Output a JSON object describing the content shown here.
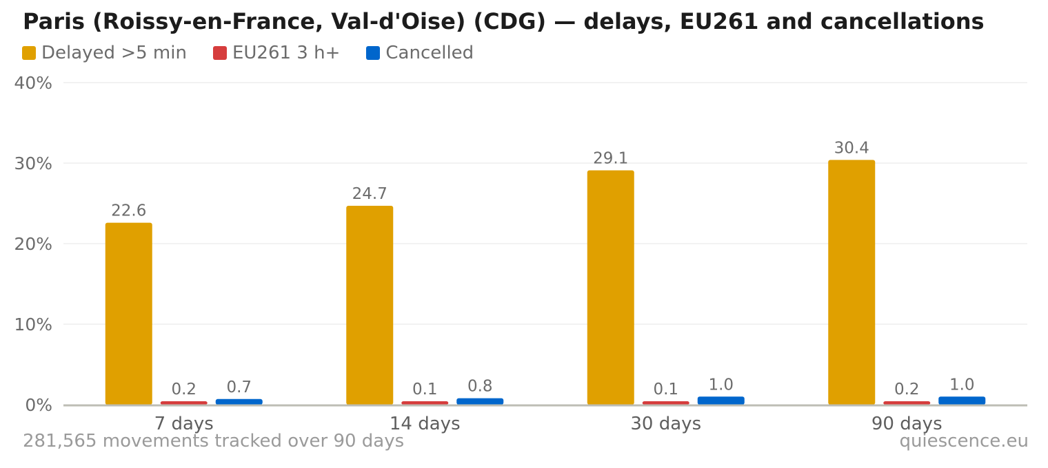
{
  "title": "Paris (Roissy-en-France, Val-d'Oise) (CDG) — delays, EU261 and cancellations",
  "footer": {
    "left": "281,565 movements tracked over 90 days",
    "right": "quiescence.eu"
  },
  "chart_data": {
    "type": "bar",
    "categories": [
      "7 days",
      "14 days",
      "30 days",
      "90 days"
    ],
    "series": [
      {
        "name": "Delayed >5 min",
        "color": "#e0a000",
        "values": [
          22.6,
          24.7,
          29.1,
          30.4
        ],
        "labels": [
          "22.6",
          "24.7",
          "29.1",
          "30.4"
        ]
      },
      {
        "name": "EU261 3 h+",
        "color": "#d63d3d",
        "values": [
          0.2,
          0.1,
          0.1,
          0.2
        ],
        "labels": [
          "0.2",
          "0.1",
          "0.1",
          "0.2"
        ]
      },
      {
        "name": "Cancelled",
        "color": "#0066cc",
        "values": [
          0.7,
          0.8,
          1.0,
          1.0
        ],
        "labels": [
          "0.7",
          "0.8",
          "1.0",
          "1.0"
        ]
      }
    ],
    "ylim": [
      0,
      40
    ],
    "yticks": [
      0,
      10,
      20,
      30,
      40
    ],
    "ytick_labels": [
      "0%",
      "10%",
      "20%",
      "30%",
      "40%"
    ],
    "grid": true,
    "legend_position": "top-left"
  }
}
